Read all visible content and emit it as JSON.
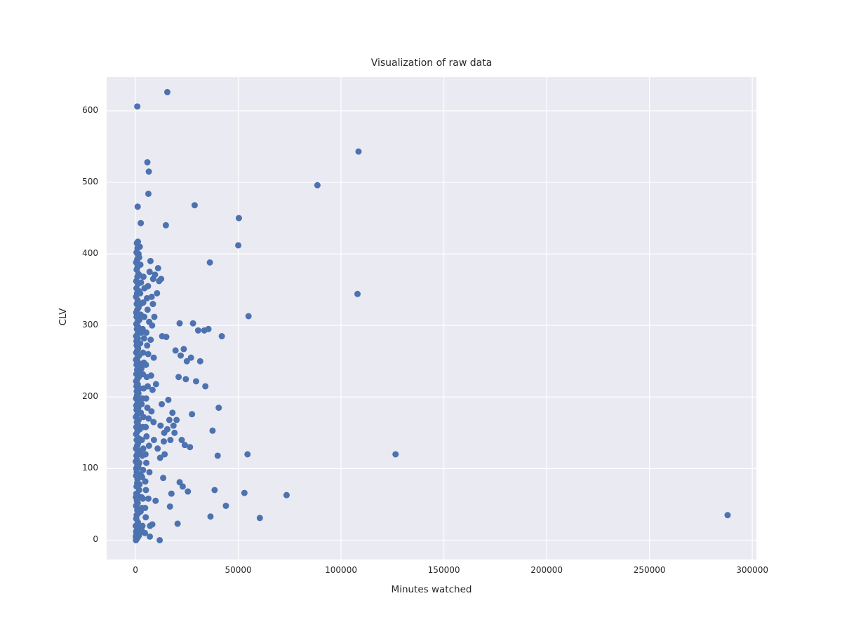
{
  "chart_data": {
    "type": "scatter",
    "title": "Visualization of raw data",
    "xlabel": "Minutes watched",
    "ylabel": "CLV",
    "xlim": [
      -14000,
      302000
    ],
    "ylim": [
      -27,
      647
    ],
    "xticks": [
      0,
      50000,
      100000,
      150000,
      200000,
      250000,
      300000
    ],
    "xtick_labels": [
      "0",
      "50000",
      "100000",
      "150000",
      "200000",
      "250000",
      "300000"
    ],
    "yticks": [
      0,
      100,
      200,
      300,
      400,
      500,
      600
    ],
    "ytick_labels": [
      "0",
      "100",
      "200",
      "300",
      "400",
      "500",
      "600"
    ],
    "grid": true,
    "legend": "none",
    "plot_background": "#eaeaf2",
    "grid_color": "#ffffff",
    "point_color": "#4c72b0",
    "points": [
      [
        288000,
        35
      ],
      [
        126500,
        120
      ],
      [
        108500,
        543
      ],
      [
        108000,
        344
      ],
      [
        88500,
        496
      ],
      [
        15500,
        626
      ],
      [
        900,
        606
      ],
      [
        5800,
        528
      ],
      [
        6500,
        515
      ],
      [
        6300,
        484
      ],
      [
        28800,
        468
      ],
      [
        1100,
        466
      ],
      [
        50300,
        450
      ],
      [
        2600,
        443
      ],
      [
        14800,
        440
      ],
      [
        50000,
        412
      ],
      [
        1200,
        417
      ],
      [
        1500,
        400
      ],
      [
        36200,
        388
      ],
      [
        55000,
        313
      ],
      [
        21500,
        303
      ],
      [
        30500,
        293
      ],
      [
        33500,
        293
      ],
      [
        42000,
        285
      ],
      [
        73500,
        63
      ],
      [
        53000,
        66
      ],
      [
        60500,
        31
      ],
      [
        54500,
        120
      ],
      [
        40000,
        118
      ],
      [
        44000,
        48
      ],
      [
        36500,
        33
      ],
      [
        38500,
        70
      ],
      [
        40500,
        185
      ],
      [
        37500,
        153
      ],
      [
        27500,
        176
      ],
      [
        29500,
        222
      ],
      [
        24500,
        225
      ],
      [
        21000,
        228
      ],
      [
        25000,
        250
      ],
      [
        27000,
        255
      ],
      [
        19500,
        265
      ],
      [
        23500,
        267
      ],
      [
        22500,
        140
      ],
      [
        24000,
        133
      ],
      [
        26500,
        130
      ],
      [
        18500,
        160
      ],
      [
        16500,
        168
      ],
      [
        14000,
        150
      ],
      [
        12200,
        160
      ],
      [
        21500,
        81
      ],
      [
        17500,
        65
      ],
      [
        13500,
        87
      ],
      [
        9500,
        371
      ],
      [
        11000,
        380
      ],
      [
        11500,
        362
      ],
      [
        12500,
        365
      ],
      [
        10500,
        345
      ],
      [
        8500,
        330
      ],
      [
        9200,
        312
      ],
      [
        13000,
        285
      ],
      [
        15000,
        284
      ],
      [
        10000,
        218
      ],
      [
        16000,
        196
      ],
      [
        12800,
        190
      ],
      [
        34000,
        215
      ],
      [
        31500,
        250
      ],
      [
        9800,
        55
      ],
      [
        11800,
        0
      ],
      [
        8200,
        22
      ],
      [
        20500,
        23
      ],
      [
        14200,
        120
      ],
      [
        13800,
        138
      ],
      [
        35500,
        295
      ],
      [
        28000,
        303
      ],
      [
        22000,
        258
      ],
      [
        19000,
        150
      ],
      [
        17000,
        140
      ],
      [
        15500,
        155
      ],
      [
        18000,
        178
      ],
      [
        20000,
        168
      ],
      [
        23000,
        75
      ],
      [
        25500,
        68
      ],
      [
        16800,
        47
      ],
      [
        12000,
        115
      ],
      [
        10800,
        128
      ],
      [
        9000,
        140
      ],
      [
        8800,
        165
      ],
      [
        7800,
        180
      ],
      [
        8300,
        210
      ],
      [
        7600,
        230
      ],
      [
        8900,
        255
      ],
      [
        7400,
        280
      ],
      [
        8100,
        300
      ],
      [
        7900,
        340
      ],
      [
        8600,
        365
      ],
      [
        7300,
        390
      ],
      [
        6900,
        375
      ],
      [
        6100,
        355
      ],
      [
        5600,
        338
      ],
      [
        5900,
        322
      ],
      [
        6700,
        305
      ],
      [
        5300,
        290
      ],
      [
        5700,
        272
      ],
      [
        6200,
        260
      ],
      [
        5100,
        245
      ],
      [
        5500,
        228
      ],
      [
        6000,
        215
      ],
      [
        5200,
        198
      ],
      [
        5800,
        185
      ],
      [
        6400,
        170
      ],
      [
        5000,
        158
      ],
      [
        5400,
        145
      ],
      [
        6600,
        132
      ],
      [
        4900,
        120
      ],
      [
        5300,
        108
      ],
      [
        6800,
        95
      ],
      [
        4800,
        82
      ],
      [
        5100,
        70
      ],
      [
        6300,
        58
      ],
      [
        4700,
        45
      ],
      [
        5000,
        32
      ],
      [
        7100,
        20
      ],
      [
        4600,
        10
      ],
      [
        7000,
        5
      ],
      [
        200,
        5
      ],
      [
        350,
        12
      ],
      [
        500,
        8
      ],
      [
        150,
        20
      ],
      [
        800,
        18
      ],
      [
        1200,
        25
      ],
      [
        400,
        30
      ],
      [
        600,
        35
      ],
      [
        900,
        42
      ],
      [
        1500,
        38
      ],
      [
        300,
        48
      ],
      [
        700,
        55
      ],
      [
        1100,
        52
      ],
      [
        250,
        60
      ],
      [
        450,
        65
      ],
      [
        1300,
        62
      ],
      [
        1800,
        70
      ],
      [
        550,
        75
      ],
      [
        850,
        80
      ],
      [
        1000,
        85
      ],
      [
        2000,
        78
      ],
      [
        350,
        90
      ],
      [
        650,
        95
      ],
      [
        1600,
        92
      ],
      [
        400,
        100
      ],
      [
        900,
        105
      ],
      [
        1400,
        102
      ],
      [
        200,
        110
      ],
      [
        750,
        112
      ],
      [
        1900,
        108
      ],
      [
        500,
        118
      ],
      [
        1050,
        122
      ],
      [
        2400,
        125
      ],
      [
        300,
        128
      ],
      [
        800,
        132
      ],
      [
        1250,
        135
      ],
      [
        600,
        140
      ],
      [
        1700,
        142
      ],
      [
        350,
        148
      ],
      [
        950,
        152
      ],
      [
        2100,
        155
      ],
      [
        450,
        158
      ],
      [
        1150,
        162
      ],
      [
        700,
        165
      ],
      [
        1550,
        168
      ],
      [
        250,
        172
      ],
      [
        850,
        175
      ],
      [
        2600,
        178
      ],
      [
        550,
        182
      ],
      [
        1350,
        185
      ],
      [
        400,
        188
      ],
      [
        1000,
        192
      ],
      [
        1850,
        195
      ],
      [
        300,
        198
      ],
      [
        750,
        202
      ],
      [
        1450,
        205
      ],
      [
        650,
        208
      ],
      [
        2200,
        212
      ],
      [
        500,
        215
      ],
      [
        1100,
        218
      ],
      [
        350,
        222
      ],
      [
        900,
        225
      ],
      [
        1650,
        228
      ],
      [
        450,
        232
      ],
      [
        1200,
        235
      ],
      [
        800,
        238
      ],
      [
        2800,
        242
      ],
      [
        550,
        245
      ],
      [
        1400,
        248
      ],
      [
        300,
        252
      ],
      [
        1000,
        255
      ],
      [
        1750,
        258
      ],
      [
        400,
        262
      ],
      [
        850,
        265
      ],
      [
        1300,
        268
      ],
      [
        600,
        272
      ],
      [
        2300,
        275
      ],
      [
        500,
        278
      ],
      [
        1150,
        282
      ],
      [
        350,
        285
      ],
      [
        950,
        288
      ],
      [
        1600,
        292
      ],
      [
        700,
        295
      ],
      [
        1250,
        298
      ],
      [
        450,
        302
      ],
      [
        1050,
        305
      ],
      [
        1900,
        308
      ],
      [
        550,
        312
      ],
      [
        1350,
        315
      ],
      [
        400,
        318
      ],
      [
        900,
        322
      ],
      [
        1500,
        325
      ],
      [
        650,
        330
      ],
      [
        1100,
        335
      ],
      [
        300,
        340
      ],
      [
        800,
        345
      ],
      [
        1700,
        348
      ],
      [
        500,
        352
      ],
      [
        1200,
        358
      ],
      [
        400,
        362
      ],
      [
        950,
        368
      ],
      [
        1450,
        372
      ],
      [
        600,
        378
      ],
      [
        1050,
        382
      ],
      [
        350,
        388
      ],
      [
        850,
        392
      ],
      [
        1300,
        398
      ],
      [
        550,
        402
      ],
      [
        1000,
        408
      ],
      [
        700,
        415
      ],
      [
        250,
        0
      ],
      [
        600,
        2
      ],
      [
        1000,
        3
      ],
      [
        1600,
        6
      ],
      [
        2200,
        10
      ],
      [
        2900,
        15
      ],
      [
        3400,
        20
      ],
      [
        3100,
        45
      ],
      [
        3600,
        58
      ],
      [
        3200,
        88
      ],
      [
        3700,
        98
      ],
      [
        3300,
        118
      ],
      [
        3800,
        128
      ],
      [
        3500,
        158
      ],
      [
        3900,
        172
      ],
      [
        3400,
        198
      ],
      [
        4000,
        212
      ],
      [
        3600,
        232
      ],
      [
        4100,
        248
      ],
      [
        3700,
        262
      ],
      [
        4200,
        282
      ],
      [
        3500,
        295
      ],
      [
        4300,
        312
      ],
      [
        3800,
        332
      ],
      [
        4400,
        352
      ],
      [
        3900,
        368
      ],
      [
        2500,
        330
      ],
      [
        2700,
        360
      ],
      [
        2400,
        385
      ],
      [
        2100,
        410
      ],
      [
        1800,
        395
      ],
      [
        2000,
        370
      ],
      [
        2300,
        345
      ],
      [
        2600,
        315
      ],
      [
        2900,
        240
      ],
      [
        3000,
        190
      ],
      [
        3100,
        140
      ],
      [
        2800,
        90
      ],
      [
        3000,
        60
      ],
      [
        2500,
        40
      ],
      [
        2700,
        140
      ],
      [
        2900,
        290
      ]
    ]
  }
}
